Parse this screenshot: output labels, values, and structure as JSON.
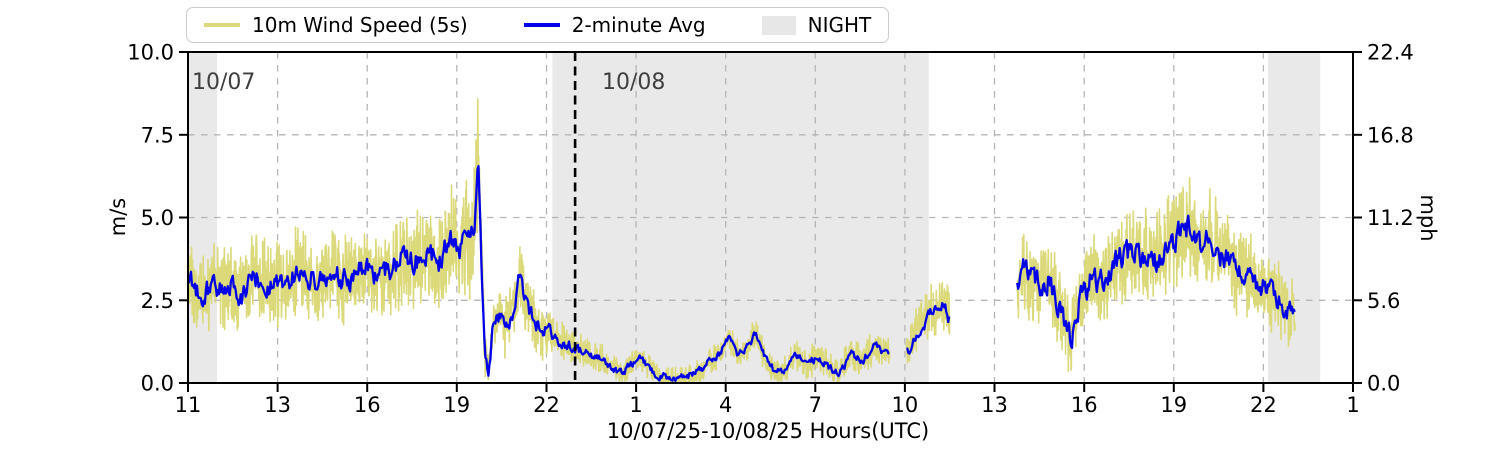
{
  "chart_data": {
    "type": "line",
    "title": "",
    "xlabel": "10/07/25-10/08/25  Hours(UTC)",
    "ylabel_left": "m/s",
    "ylabel_right": "mph",
    "x_tick_labels": [
      "11",
      "13",
      "16",
      "19",
      "22",
      "1",
      "4",
      "7",
      "10",
      "13",
      "16",
      "19",
      "22",
      "1"
    ],
    "x_tick_hours": [
      0,
      3,
      6,
      9,
      12,
      15,
      18,
      21,
      24,
      27,
      30,
      33,
      36,
      39
    ],
    "x_span_hours": 39,
    "ylim": [
      0,
      10
    ],
    "y_tick_values": [
      0,
      2.5,
      5,
      7.5,
      10
    ],
    "y_ticks_left": [
      "0.0",
      "2.5",
      "5.0",
      "7.5",
      "10.0"
    ],
    "y_ticks_right": [
      "0.0",
      "5.6",
      "11.2",
      "16.8",
      "22.4"
    ],
    "grid": true,
    "legend_position": "top-left",
    "legend": {
      "wind_label": "10m Wind Speed (5s)",
      "avg_label": "2-minute Avg",
      "night_label": "NIGHT"
    },
    "annotations": [
      {
        "text": "10/07",
        "h": 0.15
      },
      {
        "text": "10/08",
        "h": 13.85
      }
    ],
    "night_bands_h": [
      [
        0,
        0.97
      ],
      [
        12.2,
        24.8
      ],
      [
        36.15,
        37.9
      ]
    ],
    "day_boundary_h": 12.96,
    "colors": {
      "wind": "#dcd97b",
      "avg": "#0000e8",
      "night": "#e9e9e9",
      "night_legend": "#e7e7e7",
      "grid": "#b5b5b5",
      "axis": "#000000",
      "annotation": "#3f3f3f"
    },
    "series": {
      "wind_name": "10m Wind Speed (5s)",
      "avg_name": "2-minute Avg",
      "segments_h": [
        [
          0,
          23.5
        ],
        [
          24.05,
          25.5
        ],
        [
          27.76,
          37.06
        ]
      ],
      "wind_step_h": 0.01,
      "avg_step_h": 0.0333,
      "spike_h": 9.7,
      "seed": 20251007,
      "avg_anchors": [
        [
          0,
          3.2
        ],
        [
          0.4,
          2.6
        ],
        [
          0.8,
          2.9
        ],
        [
          1.3,
          3.0
        ],
        [
          1.8,
          2.7
        ],
        [
          2.3,
          3.2
        ],
        [
          2.8,
          2.9
        ],
        [
          3.3,
          3.1
        ],
        [
          3.8,
          3.4
        ],
        [
          4.3,
          3.0
        ],
        [
          4.8,
          3.3
        ],
        [
          5.3,
          3.1
        ],
        [
          5.8,
          3.4
        ],
        [
          6.3,
          3.2
        ],
        [
          6.8,
          3.5
        ],
        [
          7.2,
          3.9
        ],
        [
          7.6,
          3.6
        ],
        [
          8.0,
          4.0
        ],
        [
          8.4,
          3.7
        ],
        [
          8.8,
          4.3
        ],
        [
          9.1,
          4.1
        ],
        [
          9.4,
          4.5
        ],
        [
          9.6,
          4.8
        ],
        [
          9.71,
          6.8
        ],
        [
          9.82,
          3.8
        ],
        [
          9.95,
          0.9
        ],
        [
          10.05,
          0.25
        ],
        [
          10.2,
          1.7
        ],
        [
          10.45,
          2.1
        ],
        [
          10.7,
          1.6
        ],
        [
          10.9,
          2.3
        ],
        [
          11.1,
          3.3
        ],
        [
          11.35,
          2.3
        ],
        [
          11.6,
          1.9
        ],
        [
          11.9,
          1.6
        ],
        [
          12.3,
          1.4
        ],
        [
          12.7,
          1.15
        ],
        [
          13.0,
          1.0
        ],
        [
          13.4,
          0.85
        ],
        [
          13.8,
          0.75
        ],
        [
          14.2,
          0.5
        ],
        [
          14.5,
          0.3
        ],
        [
          14.8,
          0.55
        ],
        [
          15.1,
          0.75
        ],
        [
          15.4,
          0.5
        ],
        [
          15.8,
          0.2
        ],
        [
          16.2,
          0.1
        ],
        [
          16.6,
          0.15
        ],
        [
          17.0,
          0.3
        ],
        [
          17.4,
          0.6
        ],
        [
          17.8,
          0.9
        ],
        [
          18.1,
          1.4
        ],
        [
          18.4,
          0.9
        ],
        [
          18.7,
          1.1
        ],
        [
          19.0,
          1.45
        ],
        [
          19.3,
          0.8
        ],
        [
          19.6,
          0.4
        ],
        [
          19.9,
          0.3
        ],
        [
          20.3,
          0.9
        ],
        [
          20.7,
          0.55
        ],
        [
          21.1,
          0.8
        ],
        [
          21.5,
          0.4
        ],
        [
          21.8,
          0.25
        ],
        [
          22.2,
          0.85
        ],
        [
          22.6,
          0.7
        ],
        [
          23.0,
          1.15
        ],
        [
          23.3,
          0.85
        ],
        [
          23.5,
          0.9
        ],
        [
          24.05,
          0.9
        ],
        [
          24.4,
          1.6
        ],
        [
          24.8,
          2.0
        ],
        [
          25.1,
          2.3
        ],
        [
          25.35,
          2.4
        ],
        [
          25.5,
          1.9
        ],
        [
          27.76,
          3.1
        ],
        [
          28.0,
          3.4
        ],
        [
          28.4,
          2.9
        ],
        [
          28.8,
          3.1
        ],
        [
          29.2,
          2.2
        ],
        [
          29.55,
          1.3
        ],
        [
          29.9,
          2.6
        ],
        [
          30.3,
          3.2
        ],
        [
          30.7,
          3.0
        ],
        [
          31.1,
          3.6
        ],
        [
          31.5,
          3.9
        ],
        [
          31.9,
          3.8
        ],
        [
          32.3,
          3.7
        ],
        [
          32.8,
          4.2
        ],
        [
          33.2,
          4.4
        ],
        [
          33.45,
          4.7
        ],
        [
          33.8,
          4.1
        ],
        [
          34.2,
          4.4
        ],
        [
          34.6,
          3.9
        ],
        [
          35.0,
          3.5
        ],
        [
          35.5,
          3.2
        ],
        [
          36.0,
          2.9
        ],
        [
          36.4,
          2.6
        ],
        [
          36.8,
          2.2
        ],
        [
          37.06,
          2.0
        ]
      ],
      "band_amp_anchors": [
        [
          0,
          1.25
        ],
        [
          6,
          1.3
        ],
        [
          7,
          1.5
        ],
        [
          8,
          1.5
        ],
        [
          9,
          1.6
        ],
        [
          9.6,
          2.0
        ],
        [
          9.71,
          2.2
        ],
        [
          9.9,
          1.2
        ],
        [
          10.1,
          0.6
        ],
        [
          10.6,
          0.9
        ],
        [
          11.2,
          1.0
        ],
        [
          12,
          0.8
        ],
        [
          12.6,
          0.6
        ],
        [
          13,
          0.5
        ],
        [
          14,
          0.4
        ],
        [
          16,
          0.35
        ],
        [
          18,
          0.45
        ],
        [
          20,
          0.45
        ],
        [
          22,
          0.5
        ],
        [
          23.5,
          0.5
        ],
        [
          24.05,
          0.6
        ],
        [
          24.8,
          0.8
        ],
        [
          25.5,
          0.9
        ],
        [
          27.76,
          1.2
        ],
        [
          29,
          1.2
        ],
        [
          30,
          1.25
        ],
        [
          31,
          1.3
        ],
        [
          32,
          1.4
        ],
        [
          33,
          1.5
        ],
        [
          33.5,
          1.5
        ],
        [
          34.5,
          1.4
        ],
        [
          35.5,
          1.3
        ],
        [
          36.5,
          1.1
        ],
        [
          37.06,
          0.9
        ]
      ],
      "avg_noise_scale_anchors": [
        [
          0,
          0.42
        ],
        [
          9,
          0.5
        ],
        [
          9.6,
          0.35
        ],
        [
          10.2,
          0.3
        ],
        [
          11,
          0.38
        ],
        [
          12,
          0.3
        ],
        [
          13,
          0.2
        ],
        [
          14,
          0.16
        ],
        [
          23.5,
          0.16
        ],
        [
          24.05,
          0.25
        ],
        [
          25.5,
          0.28
        ],
        [
          27.76,
          0.5
        ],
        [
          33,
          0.55
        ],
        [
          37.06,
          0.42
        ]
      ]
    }
  }
}
